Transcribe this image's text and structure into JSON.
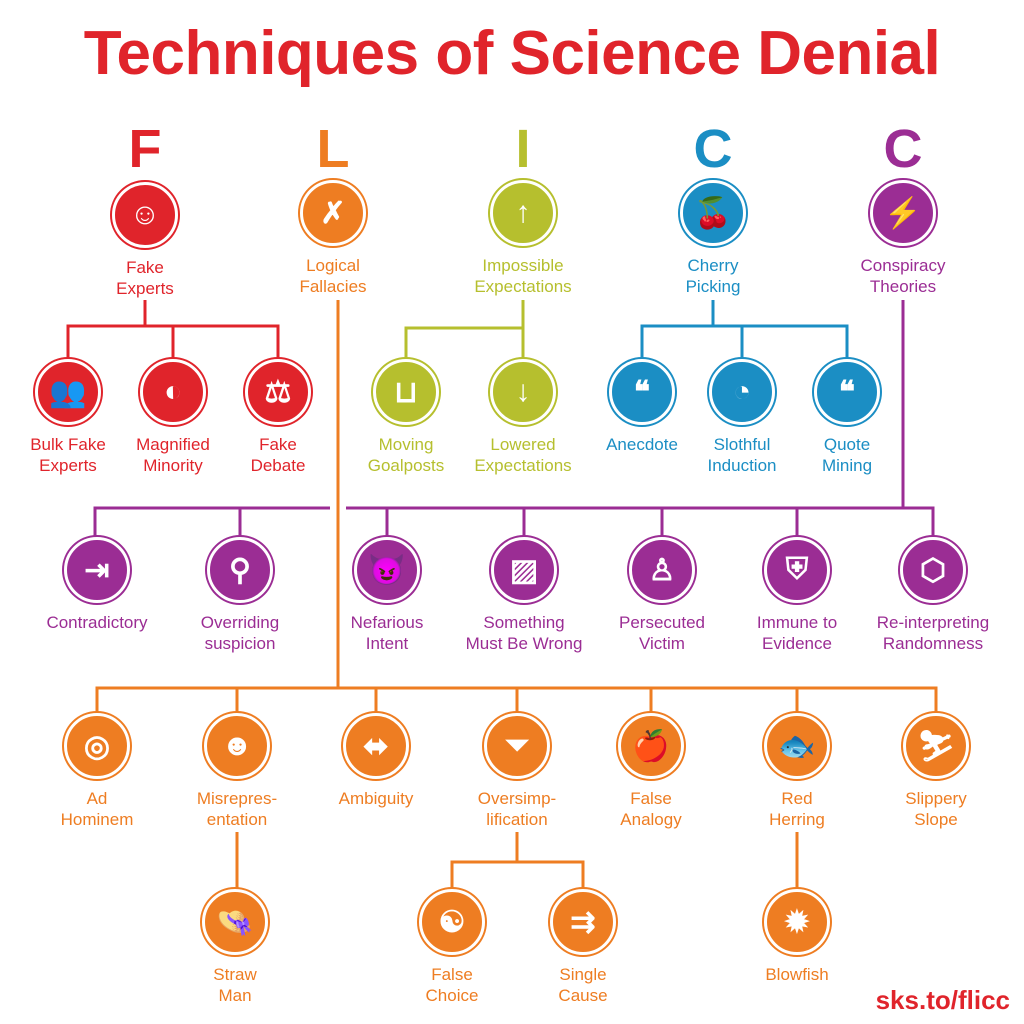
{
  "title": "Techniques of Science Denial",
  "colors": {
    "fake": "#e0242b",
    "logic": "#ee7d22",
    "impossible": "#b6bf2e",
    "cherry": "#1b8ec4",
    "conspiracy": "#9b2d94"
  },
  "letters": [
    {
      "id": "F",
      "text": "F",
      "group": "fake"
    },
    {
      "id": "L",
      "text": "L",
      "group": "logic"
    },
    {
      "id": "I",
      "text": "I",
      "group": "impossible"
    },
    {
      "id": "C1",
      "text": "C",
      "group": "cherry"
    },
    {
      "id": "C2",
      "text": "C",
      "group": "conspiracy"
    }
  ],
  "nodes": [
    {
      "id": "fake-experts",
      "lines": [
        "Fake",
        "Experts"
      ],
      "group": "fake",
      "icon": "faces-icon",
      "glyph": "☺"
    },
    {
      "id": "logical-fallacies",
      "lines": [
        "Logical",
        "Fallacies"
      ],
      "group": "logic",
      "icon": "speech-x-icon",
      "glyph": "✗"
    },
    {
      "id": "impossible-expectations",
      "lines": [
        "Impossible",
        "Expectations"
      ],
      "group": "impossible",
      "icon": "arrow-up-bar-icon",
      "glyph": "↑"
    },
    {
      "id": "cherry-picking",
      "lines": [
        "Cherry",
        "Picking"
      ],
      "group": "cherry",
      "icon": "cherries-icon",
      "glyph": "🍒"
    },
    {
      "id": "conspiracy-theories",
      "lines": [
        "Conspiracy",
        "Theories"
      ],
      "group": "conspiracy",
      "icon": "head-lightning-icon",
      "glyph": "⚡"
    },
    {
      "id": "bulk-fake-experts",
      "lines": [
        "Bulk Fake",
        "Experts"
      ],
      "group": "fake",
      "icon": "crowd-icon",
      "glyph": "👥"
    },
    {
      "id": "magnified-minority",
      "lines": [
        "Magnified",
        "Minority"
      ],
      "group": "fake",
      "icon": "profile-icon",
      "glyph": "◐"
    },
    {
      "id": "fake-debate",
      "lines": [
        "Fake",
        "Debate"
      ],
      "group": "fake",
      "icon": "scales-icon",
      "glyph": "⚖"
    },
    {
      "id": "moving-goalposts",
      "lines": [
        "Moving",
        "Goalposts"
      ],
      "group": "impossible",
      "icon": "goalpost-icon",
      "glyph": "⊔"
    },
    {
      "id": "lowered-expectations",
      "lines": [
        "Lowered",
        "Expectations"
      ],
      "group": "impossible",
      "icon": "arrow-down-bar-icon",
      "glyph": "↓"
    },
    {
      "id": "anecdote",
      "lines": [
        "Anecdote"
      ],
      "group": "cherry",
      "icon": "speech-bubble-icon",
      "glyph": "❝"
    },
    {
      "id": "slothful-induction",
      "lines": [
        "Slothful",
        "Induction"
      ],
      "group": "cherry",
      "icon": "sloth-icon",
      "glyph": "◔"
    },
    {
      "id": "quote-mining",
      "lines": [
        "Quote",
        "Mining"
      ],
      "group": "cherry",
      "icon": "quote-icon",
      "glyph": "❝"
    },
    {
      "id": "contradictory",
      "lines": [
        "Contradictory"
      ],
      "group": "conspiracy",
      "icon": "arrows-collide-icon",
      "glyph": "⇥"
    },
    {
      "id": "overriding-suspicion",
      "lines": [
        "Overriding",
        "suspicion"
      ],
      "group": "conspiracy",
      "icon": "magnifier-icon",
      "glyph": "⚲"
    },
    {
      "id": "nefarious-intent",
      "lines": [
        "Nefarious",
        "Intent"
      ],
      "group": "conspiracy",
      "icon": "devil-icon",
      "glyph": "😈"
    },
    {
      "id": "something-must-be-wrong",
      "lines": [
        "Something",
        "Must Be Wrong"
      ],
      "group": "conspiracy",
      "icon": "crossed-document-icon",
      "glyph": "▨"
    },
    {
      "id": "persecuted-victim",
      "lines": [
        "Persecuted",
        "Victim"
      ],
      "group": "conspiracy",
      "icon": "kneeling-figure-icon",
      "glyph": "♙"
    },
    {
      "id": "immune-to-evidence",
      "lines": [
        "Immune to",
        "Evidence"
      ],
      "group": "conspiracy",
      "icon": "shield-icon",
      "glyph": "⛨"
    },
    {
      "id": "re-interpreting-randomness",
      "lines": [
        "Re-interpreting",
        "Randomness"
      ],
      "group": "conspiracy",
      "icon": "connected-dots-icon",
      "glyph": "⬡"
    },
    {
      "id": "ad-hominem",
      "lines": [
        "Ad",
        "Hominem"
      ],
      "group": "logic",
      "icon": "target-head-icon",
      "glyph": "◎"
    },
    {
      "id": "misrepresentation",
      "lines": [
        "Misrepres-",
        "entation"
      ],
      "group": "logic",
      "icon": "mask-icon",
      "glyph": "☻"
    },
    {
      "id": "ambiguity",
      "lines": [
        "Ambiguity"
      ],
      "group": "logic",
      "icon": "double-arrow-icon",
      "glyph": "⬌"
    },
    {
      "id": "oversimplification",
      "lines": [
        "Oversimp-",
        "lification"
      ],
      "group": "logic",
      "icon": "funnel-icon",
      "glyph": "⏷"
    },
    {
      "id": "false-analogy",
      "lines": [
        "False",
        "Analogy"
      ],
      "group": "logic",
      "icon": "apple-orange-icon",
      "glyph": "🍎"
    },
    {
      "id": "red-herring",
      "lines": [
        "Red",
        "Herring"
      ],
      "group": "logic",
      "icon": "fish-icon",
      "glyph": "🐟"
    },
    {
      "id": "slippery-slope",
      "lines": [
        "Slippery",
        "Slope"
      ],
      "group": "logic",
      "icon": "sliding-figure-icon",
      "glyph": "⛷"
    },
    {
      "id": "straw-man",
      "lines": [
        "Straw",
        "Man"
      ],
      "group": "logic",
      "icon": "scarecrow-icon",
      "glyph": "👒"
    },
    {
      "id": "false-choice",
      "lines": [
        "False",
        "Choice"
      ],
      "group": "logic",
      "icon": "yin-yang-icon",
      "glyph": "☯"
    },
    {
      "id": "single-cause",
      "lines": [
        "Single",
        "Cause"
      ],
      "group": "logic",
      "icon": "abc-arrows-icon",
      "glyph": "⇉"
    },
    {
      "id": "blowfish",
      "lines": [
        "Blowfish"
      ],
      "group": "logic",
      "icon": "blowfish-icon",
      "glyph": "✹"
    }
  ],
  "footer": "sks.to/flicc"
}
